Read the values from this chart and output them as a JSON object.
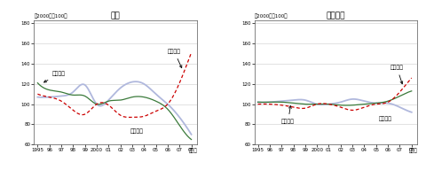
{
  "title_japan": "日本",
  "title_america": "アメリカ",
  "ylabel": "（2000年＝100）",
  "xlabel": "（年）",
  "ylim": [
    60,
    180
  ],
  "yticks": [
    60,
    80,
    100,
    120,
    140,
    160,
    180
  ],
  "xtick_labels": [
    "1995",
    "96",
    "97",
    "98",
    "99",
    "2000",
    "01",
    "02",
    "03",
    "04",
    "05",
    "06",
    "07",
    "08"
  ],
  "color_export": "#3a7a3a",
  "color_import": "#cc0000",
  "color_terms": "#b0b8dd",
  "background": "#ffffff",
  "ann_export_jp": "輸出価格",
  "ann_import_jp": "輸入価格",
  "ann_terms_jp": "交易条件",
  "ann_export_us": "輸出価格",
  "ann_import_us": "輸入価格",
  "ann_terms_us": "交易条件"
}
